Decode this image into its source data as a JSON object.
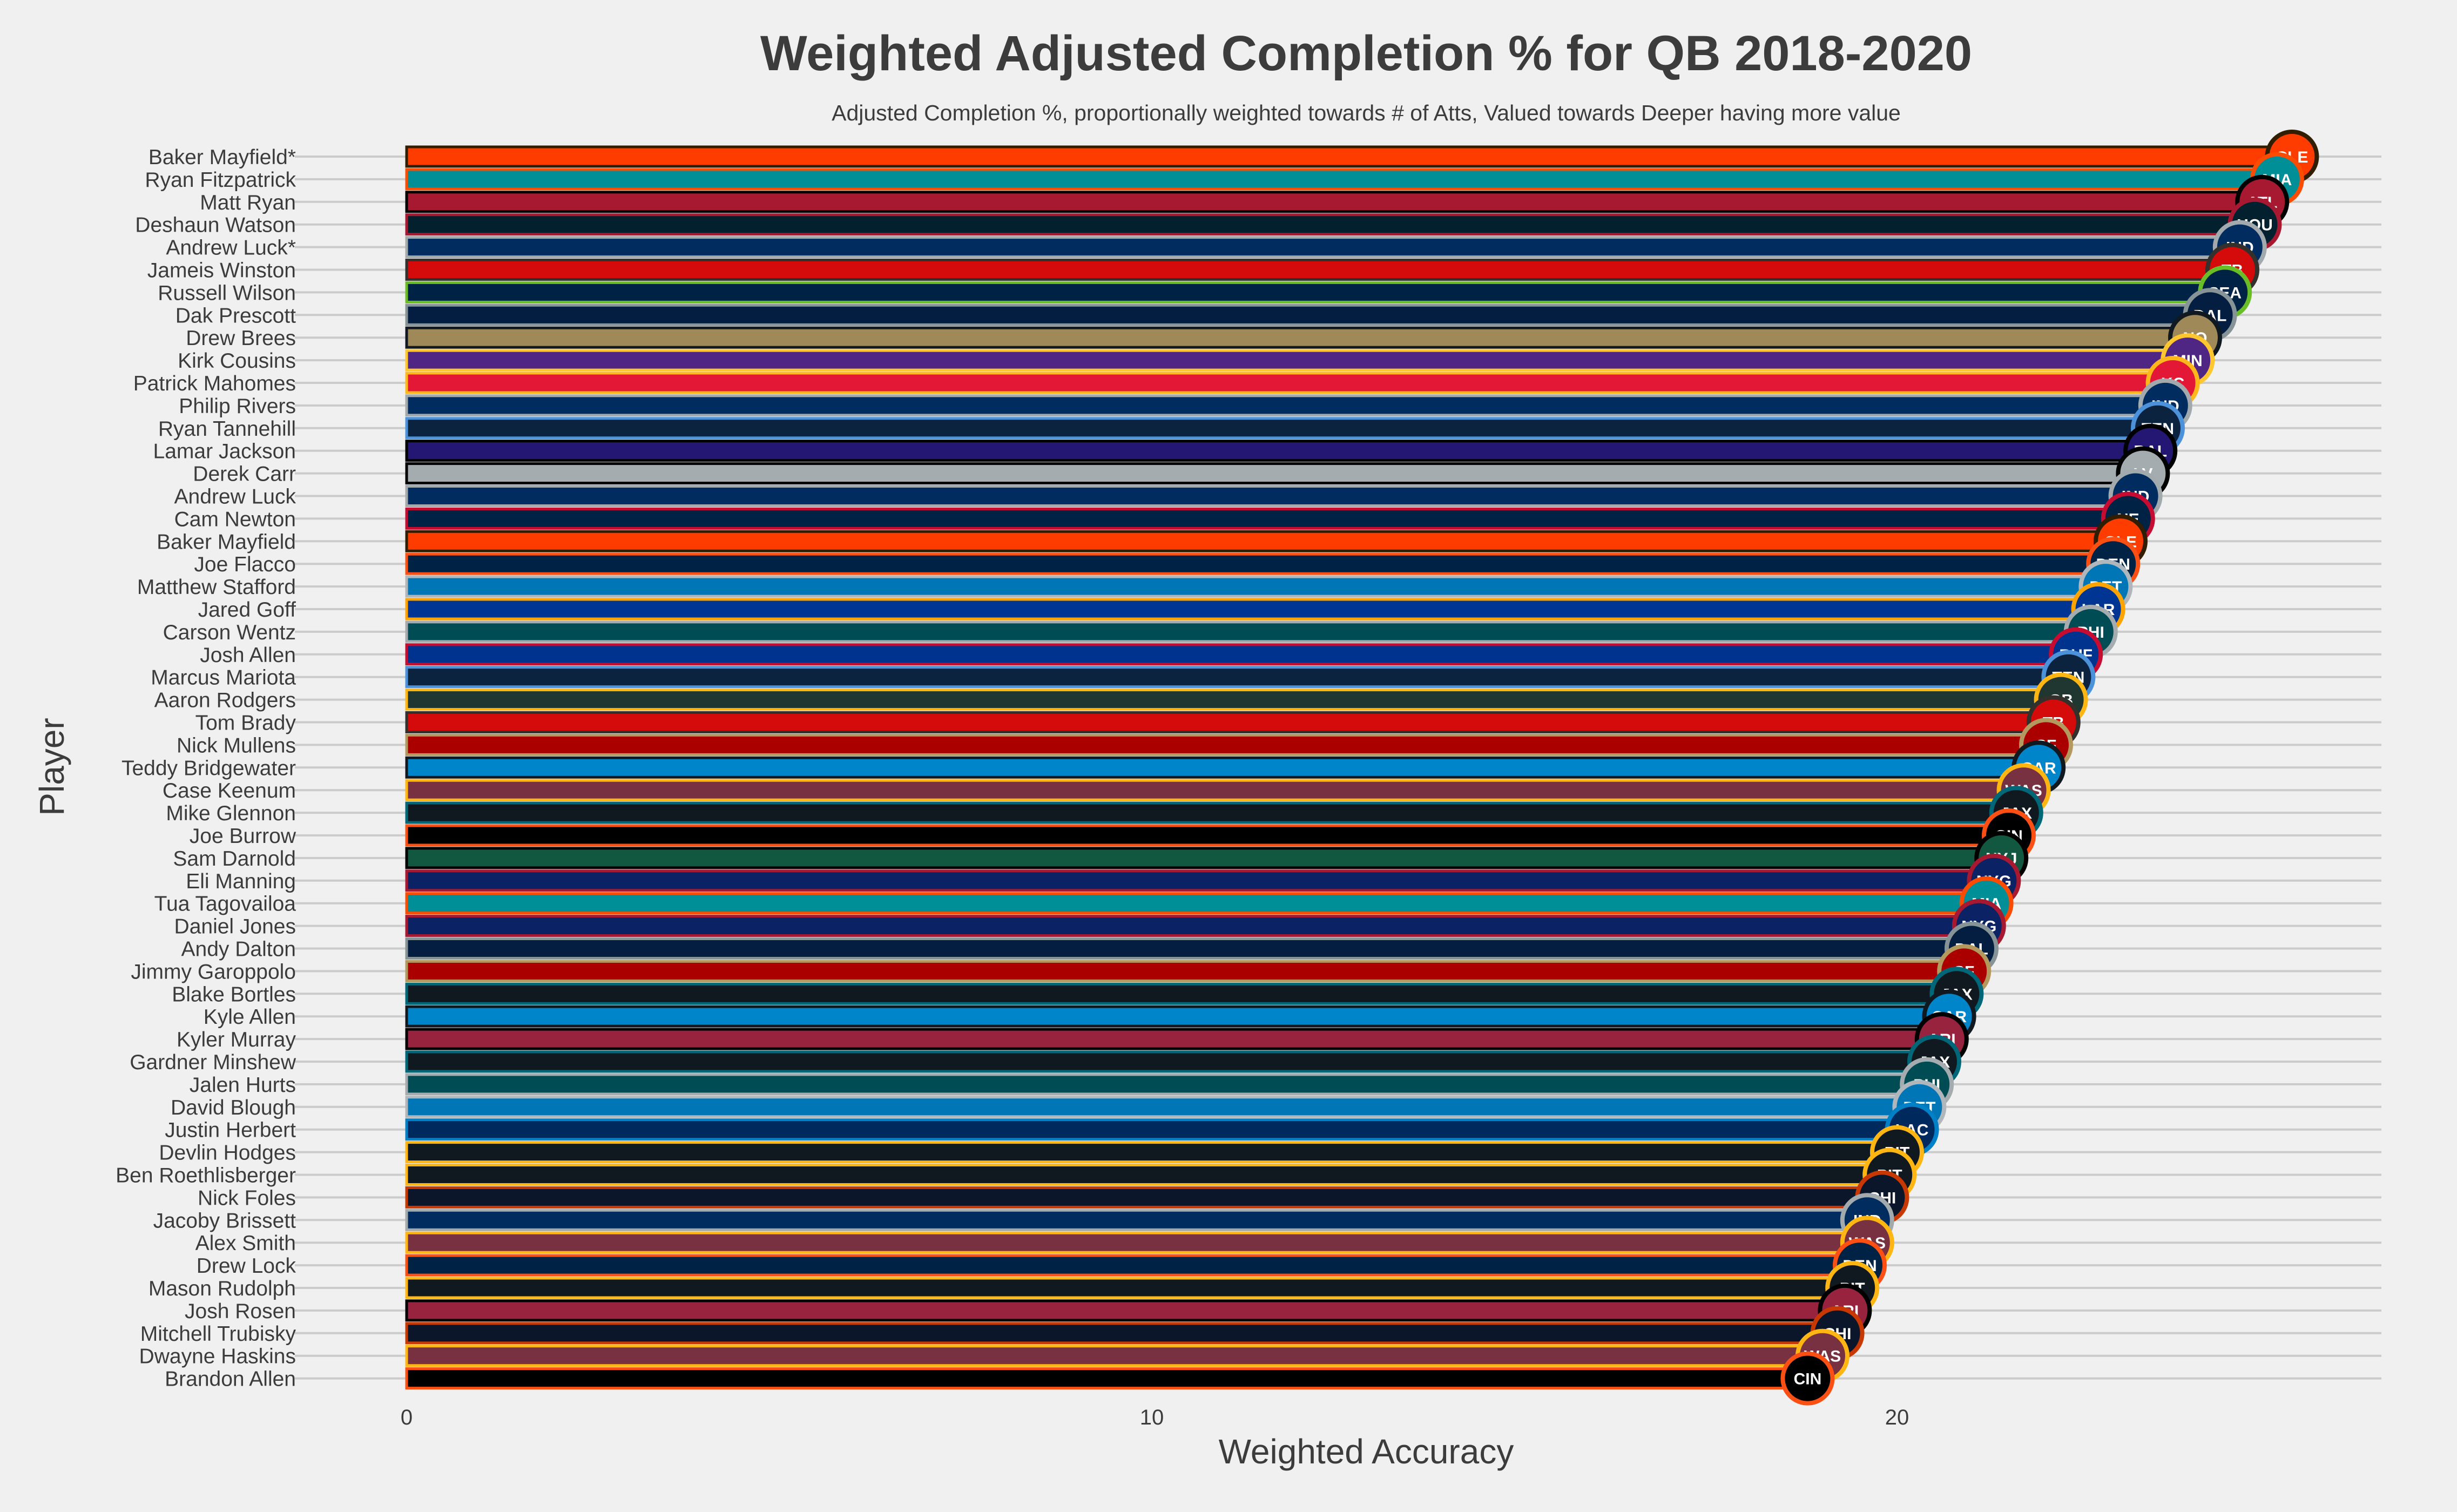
{
  "chart_data": {
    "type": "bar",
    "orientation": "horizontal",
    "title": "Weighted Adjusted Completion % for QB 2018-2020",
    "subtitle": "Adjusted Completion %, proportionally weighted towards # of Atts, Valued towards Deeper having more value",
    "xlabel": "Weighted Accuracy",
    "ylabel": "Player",
    "xlim": [
      -1.5,
      26.5
    ],
    "xticks": [
      0,
      10,
      20
    ],
    "xtick_labels": [
      "0",
      "10",
      "20"
    ],
    "grid": "horizontal",
    "background": "#f0f0f0",
    "gridline_color": "#cbcbcb",
    "text_color": "#3c3c3c",
    "bars": [
      {
        "player": "Baker Mayfield*",
        "value": 25.3,
        "team": "CLE",
        "fill": "#FF3C00",
        "outline": "#311D00"
      },
      {
        "player": "Ryan Fitzpatrick",
        "value": 25.1,
        "team": "MIA",
        "fill": "#008E97",
        "outline": "#FC4C02"
      },
      {
        "player": "Matt Ryan",
        "value": 24.9,
        "team": "ATL",
        "fill": "#A71930",
        "outline": "#000000"
      },
      {
        "player": "Deshaun Watson",
        "value": 24.8,
        "team": "HOU",
        "fill": "#03202F",
        "outline": "#A71930"
      },
      {
        "player": "Andrew Luck*",
        "value": 24.6,
        "team": "IND",
        "fill": "#002C5F",
        "outline": "#A2AAAD"
      },
      {
        "player": "Jameis Winston",
        "value": 24.5,
        "team": "TB",
        "fill": "#D50A0A",
        "outline": "#34302B"
      },
      {
        "player": "Russell Wilson",
        "value": 24.4,
        "team": "SEA",
        "fill": "#002244",
        "outline": "#69BE28"
      },
      {
        "player": "Dak Prescott",
        "value": 24.2,
        "team": "DAL",
        "fill": "#041E42",
        "outline": "#869397"
      },
      {
        "player": "Drew Brees",
        "value": 24.0,
        "team": "NO",
        "fill": "#9F8958",
        "outline": "#101820"
      },
      {
        "player": "Kirk Cousins",
        "value": 23.9,
        "team": "MIN",
        "fill": "#4F2683",
        "outline": "#FFC62F"
      },
      {
        "player": "Patrick Mahomes",
        "value": 23.7,
        "team": "KC",
        "fill": "#E31837",
        "outline": "#FFB81C"
      },
      {
        "player": "Philip Rivers",
        "value": 23.6,
        "team": "IND",
        "fill": "#002C5F",
        "outline": "#A2AAAD"
      },
      {
        "player": "Ryan Tannehill",
        "value": 23.5,
        "team": "TEN",
        "fill": "#0C2340",
        "outline": "#4B92DB"
      },
      {
        "player": "Lamar Jackson",
        "value": 23.4,
        "team": "BAL",
        "fill": "#241773",
        "outline": "#000000"
      },
      {
        "player": "Derek Carr",
        "value": 23.3,
        "team": "LV",
        "fill": "#A5ACAF",
        "outline": "#000000"
      },
      {
        "player": "Andrew Luck",
        "value": 23.2,
        "team": "IND",
        "fill": "#002C5F",
        "outline": "#A2AAAD"
      },
      {
        "player": "Cam Newton",
        "value": 23.1,
        "team": "NE",
        "fill": "#002244",
        "outline": "#C60C30"
      },
      {
        "player": "Baker Mayfield",
        "value": 23.0,
        "team": "CLE",
        "fill": "#FF3C00",
        "outline": "#311D00"
      },
      {
        "player": "Joe Flacco",
        "value": 22.9,
        "team": "DEN",
        "fill": "#002244",
        "outline": "#FB4F14"
      },
      {
        "player": "Matthew Stafford",
        "value": 22.8,
        "team": "DET",
        "fill": "#0076B6",
        "outline": "#B0B7BC"
      },
      {
        "player": "Jared Goff",
        "value": 22.7,
        "team": "LAR",
        "fill": "#003594",
        "outline": "#FFA300"
      },
      {
        "player": "Carson Wentz",
        "value": 22.6,
        "team": "PHI",
        "fill": "#004C54",
        "outline": "#A5ACAF"
      },
      {
        "player": "Josh Allen",
        "value": 22.4,
        "team": "BUF",
        "fill": "#00338D",
        "outline": "#C60C30"
      },
      {
        "player": "Marcus Mariota",
        "value": 22.3,
        "team": "TEN",
        "fill": "#0C2340",
        "outline": "#4B92DB"
      },
      {
        "player": "Aaron Rodgers",
        "value": 22.2,
        "team": "GB",
        "fill": "#203731",
        "outline": "#FFB612"
      },
      {
        "player": "Tom Brady",
        "value": 22.1,
        "team": "TB",
        "fill": "#D50A0A",
        "outline": "#34302B"
      },
      {
        "player": "Nick Mullens",
        "value": 22.0,
        "team": "SF",
        "fill": "#AA0000",
        "outline": "#B3995D"
      },
      {
        "player": "Teddy Bridgewater",
        "value": 21.9,
        "team": "CAR",
        "fill": "#0085CA",
        "outline": "#101820"
      },
      {
        "player": "Case Keenum",
        "value": 21.7,
        "team": "WAS",
        "fill": "#773141",
        "outline": "#FFB612"
      },
      {
        "player": "Mike Glennon",
        "value": 21.6,
        "team": "JAX",
        "fill": "#101820",
        "outline": "#006778"
      },
      {
        "player": "Joe Burrow",
        "value": 21.5,
        "team": "CIN",
        "fill": "#000000",
        "outline": "#FB4F14"
      },
      {
        "player": "Sam Darnold",
        "value": 21.4,
        "team": "NYJ",
        "fill": "#125740",
        "outline": "#000000"
      },
      {
        "player": "Eli Manning",
        "value": 21.3,
        "team": "NYG",
        "fill": "#0B2265",
        "outline": "#A71930"
      },
      {
        "player": "Tua Tagovailoa",
        "value": 21.2,
        "team": "MIA",
        "fill": "#008E97",
        "outline": "#FC4C02"
      },
      {
        "player": "Daniel Jones",
        "value": 21.1,
        "team": "NYG",
        "fill": "#0B2265",
        "outline": "#A71930"
      },
      {
        "player": "Andy Dalton",
        "value": 21.0,
        "team": "DAL",
        "fill": "#041E42",
        "outline": "#869397"
      },
      {
        "player": "Jimmy Garoppolo",
        "value": 20.9,
        "team": "SF",
        "fill": "#AA0000",
        "outline": "#B3995D"
      },
      {
        "player": "Blake Bortles",
        "value": 20.8,
        "team": "JAX",
        "fill": "#101820",
        "outline": "#006778"
      },
      {
        "player": "Kyle Allen",
        "value": 20.7,
        "team": "CAR",
        "fill": "#0085CA",
        "outline": "#101820"
      },
      {
        "player": "Kyler Murray",
        "value": 20.6,
        "team": "ARI",
        "fill": "#97233F",
        "outline": "#000000"
      },
      {
        "player": "Gardner Minshew",
        "value": 20.5,
        "team": "JAX",
        "fill": "#101820",
        "outline": "#006778"
      },
      {
        "player": "Jalen Hurts",
        "value": 20.4,
        "team": "PHI",
        "fill": "#004C54",
        "outline": "#A5ACAF"
      },
      {
        "player": "David Blough",
        "value": 20.3,
        "team": "DET",
        "fill": "#0076B6",
        "outline": "#B0B7BC"
      },
      {
        "player": "Justin Herbert",
        "value": 20.2,
        "team": "LAC",
        "fill": "#002A5E",
        "outline": "#0080C6"
      },
      {
        "player": "Devlin Hodges",
        "value": 20.0,
        "team": "PIT",
        "fill": "#101820",
        "outline": "#FFB612"
      },
      {
        "player": "Ben Roethlisberger",
        "value": 19.9,
        "team": "PIT",
        "fill": "#101820",
        "outline": "#FFB612"
      },
      {
        "player": "Nick Foles",
        "value": 19.8,
        "team": "CHI",
        "fill": "#0B162A",
        "outline": "#C83803"
      },
      {
        "player": "Jacoby Brissett",
        "value": 19.6,
        "team": "IND",
        "fill": "#002C5F",
        "outline": "#A2AAAD"
      },
      {
        "player": "Alex Smith",
        "value": 19.6,
        "team": "WAS",
        "fill": "#773141",
        "outline": "#FFB612"
      },
      {
        "player": "Drew Lock",
        "value": 19.5,
        "team": "DEN",
        "fill": "#002244",
        "outline": "#FB4F14"
      },
      {
        "player": "Mason Rudolph",
        "value": 19.4,
        "team": "PIT",
        "fill": "#101820",
        "outline": "#FFB612"
      },
      {
        "player": "Josh Rosen",
        "value": 19.3,
        "team": "ARI",
        "fill": "#97233F",
        "outline": "#000000"
      },
      {
        "player": "Mitchell Trubisky",
        "value": 19.2,
        "team": "CHI",
        "fill": "#0B162A",
        "outline": "#C83803"
      },
      {
        "player": "Dwayne Haskins",
        "value": 19.0,
        "team": "WAS",
        "fill": "#773141",
        "outline": "#FFB612"
      },
      {
        "player": "Brandon Allen",
        "value": 18.8,
        "team": "CIN",
        "fill": "#000000",
        "outline": "#FB4F14"
      }
    ]
  }
}
